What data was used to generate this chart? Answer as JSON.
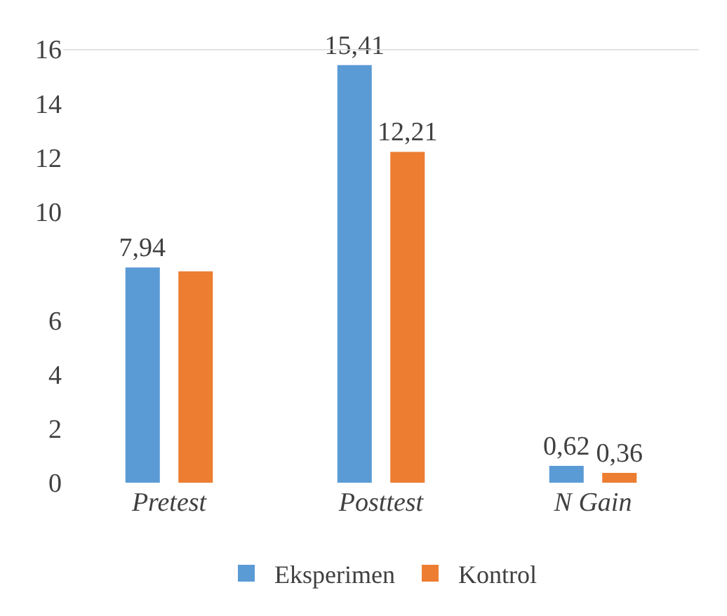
{
  "chart_data": {
    "type": "bar",
    "categories": [
      "Pretest",
      "Posttest",
      "N Gain"
    ],
    "series": [
      {
        "name": "Eksperimen",
        "color": "#5b9bd5",
        "values": [
          7.94,
          15.41,
          0.62
        ],
        "value_labels": [
          "7,94",
          "15,41",
          "0,62"
        ]
      },
      {
        "name": "Kontrol",
        "color": "#ed7d31",
        "values": [
          7.8,
          12.21,
          0.36
        ],
        "value_labels": [
          null,
          "12,21",
          "0,36"
        ]
      }
    ],
    "ylim": [
      0,
      16
    ],
    "yticks": [
      0,
      2,
      4,
      6,
      10,
      12,
      14,
      16
    ],
    "ref_lines": [
      {
        "axis": "y",
        "value": 16,
        "color": "#d9d9d9"
      }
    ],
    "legend": "bottom"
  }
}
